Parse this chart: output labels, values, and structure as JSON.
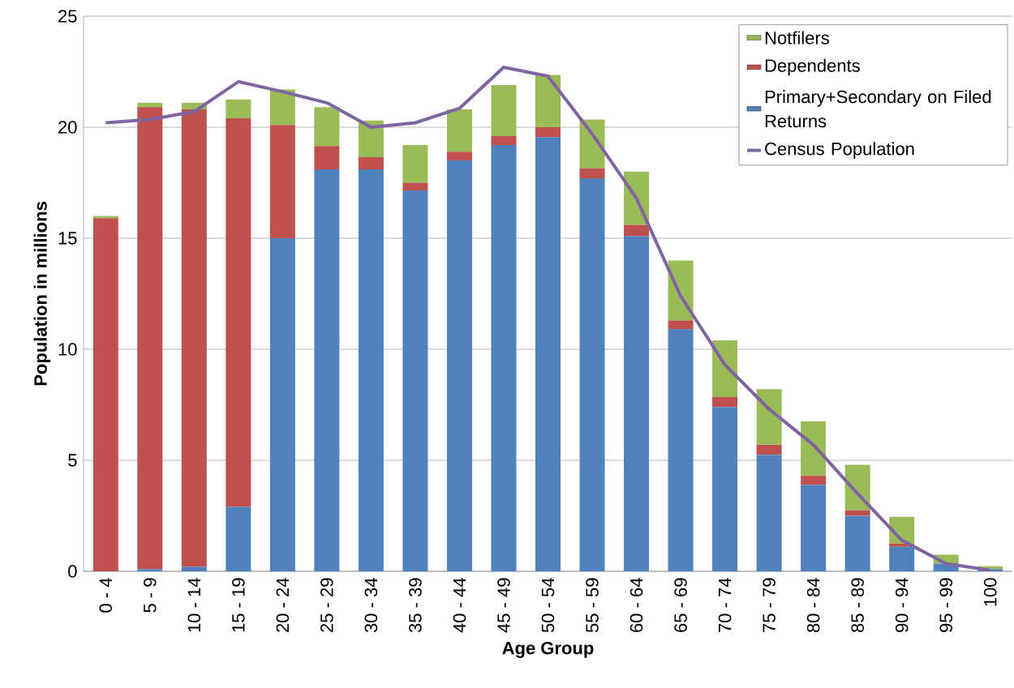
{
  "chart_data": {
    "type": "bar",
    "stacked": true,
    "xlabel": "Age Group",
    "ylabel": "Population in millions",
    "categories": [
      "0 - 4",
      "5 - 9",
      "10 - 14",
      "15 - 19",
      "20 - 24",
      "25 - 29",
      "30 - 34",
      "35 - 39",
      "40 - 44",
      "45 - 49",
      "50 - 54",
      "55 - 59",
      "60 - 64",
      "65 - 69",
      "70 - 74",
      "75 - 79",
      "80 - 84",
      "85 - 89",
      "90 - 94",
      "95 - 99",
      "100"
    ],
    "series": [
      {
        "name": "Primary+Secondary on Filed Returns",
        "color": "#4f81bd",
        "values": [
          0,
          0.1,
          0.2,
          2.9,
          15.0,
          18.1,
          18.1,
          17.15,
          18.5,
          19.2,
          19.55,
          17.7,
          15.1,
          10.9,
          7.4,
          5.25,
          3.9,
          2.5,
          1.1,
          0.35,
          0.1
        ]
      },
      {
        "name": "Dependents",
        "color": "#c0504d",
        "values": [
          15.9,
          20.8,
          20.6,
          17.5,
          5.1,
          1.05,
          0.55,
          0.35,
          0.4,
          0.4,
          0.45,
          0.45,
          0.5,
          0.4,
          0.45,
          0.45,
          0.4,
          0.25,
          0.15,
          null,
          null
        ]
      },
      {
        "name": "Notfilers",
        "color": "#9bbb59",
        "values": [
          0.1,
          0.2,
          0.3,
          0.85,
          1.6,
          1.75,
          1.65,
          1.7,
          1.9,
          2.3,
          2.35,
          2.2,
          2.4,
          2.7,
          2.55,
          2.5,
          2.45,
          2.05,
          1.2,
          0.4,
          0.13
        ]
      },
      {
        "name": "Census Population",
        "type": "line",
        "color": "#8064a2",
        "values": [
          20.2,
          20.35,
          20.7,
          22.05,
          21.6,
          21.1,
          20.0,
          20.2,
          20.85,
          22.7,
          22.3,
          19.7,
          16.8,
          12.4,
          9.3,
          7.3,
          5.7,
          3.5,
          1.4,
          0.35,
          0.05
        ]
      }
    ],
    "ylim": [
      0,
      25
    ],
    "yticks": [
      0,
      5,
      10,
      15,
      20,
      25
    ],
    "grid": "y",
    "legend": "top right",
    "marker": "none"
  }
}
